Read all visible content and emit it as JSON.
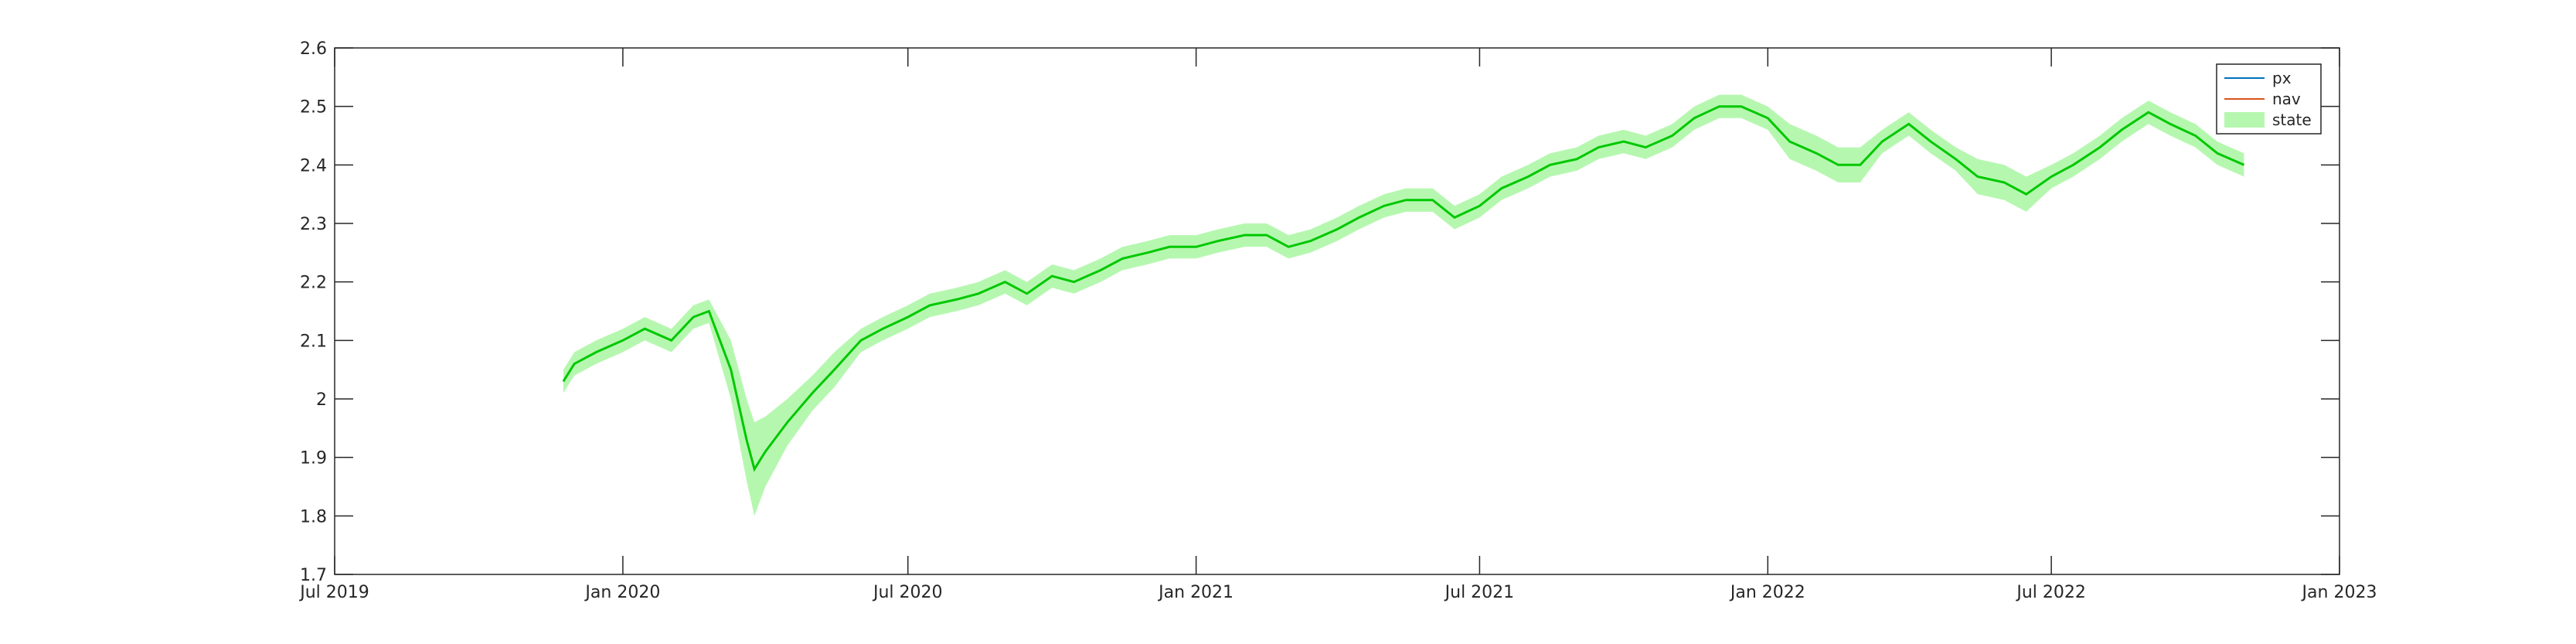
{
  "chart_data": {
    "type": "line",
    "title": "",
    "xlabel": "",
    "ylabel": "",
    "x_range": [
      "2019-07-01",
      "2023-01-01"
    ],
    "ylim": [
      1.7,
      2.6
    ],
    "x_tick_labels": [
      "Jul 2019",
      "Jan 2020",
      "Jul 2020",
      "Jan 2021",
      "Jul 2021",
      "Jan 2022",
      "Jul 2022",
      "Jan 2023"
    ],
    "x_tick_dates": [
      "2019-07-01",
      "2020-01-01",
      "2020-07-01",
      "2021-01-01",
      "2021-07-01",
      "2022-01-01",
      "2022-07-01",
      "2023-01-01"
    ],
    "y_ticks": [
      1.7,
      1.8,
      1.9,
      2.0,
      2.1,
      2.2,
      2.3,
      2.4,
      2.5,
      2.6
    ],
    "y_tick_labels": [
      "1.7",
      "1.8",
      "1.9",
      "2",
      "2.1",
      "2.2",
      "2.3",
      "2.4",
      "2.5",
      "2.6"
    ],
    "grid": false,
    "legend_placement": "top-right",
    "x": [
      "2019-11-24",
      "2019-12-01",
      "2019-12-15",
      "2020-01-01",
      "2020-01-15",
      "2020-02-01",
      "2020-02-15",
      "2020-02-25",
      "2020-03-10",
      "2020-03-20",
      "2020-03-25",
      "2020-04-01",
      "2020-04-15",
      "2020-05-01",
      "2020-05-15",
      "2020-06-01",
      "2020-06-15",
      "2020-07-01",
      "2020-07-15",
      "2020-08-01",
      "2020-08-15",
      "2020-09-01",
      "2020-09-15",
      "2020-10-01",
      "2020-10-15",
      "2020-11-01",
      "2020-11-15",
      "2020-12-01",
      "2020-12-15",
      "2021-01-01",
      "2021-01-15",
      "2021-02-01",
      "2021-02-15",
      "2021-03-01",
      "2021-03-15",
      "2021-04-01",
      "2021-04-15",
      "2021-05-01",
      "2021-05-15",
      "2021-06-01",
      "2021-06-15",
      "2021-07-01",
      "2021-07-15",
      "2021-08-01",
      "2021-08-15",
      "2021-09-01",
      "2021-09-15",
      "2021-10-01",
      "2021-10-15",
      "2021-11-01",
      "2021-11-15",
      "2021-12-01",
      "2021-12-15",
      "2022-01-01",
      "2022-01-15",
      "2022-02-01",
      "2022-02-15",
      "2022-03-01",
      "2022-03-15",
      "2022-04-01",
      "2022-04-15",
      "2022-05-01",
      "2022-05-15",
      "2022-06-01",
      "2022-06-15",
      "2022-07-01",
      "2022-07-15",
      "2022-08-01",
      "2022-08-15",
      "2022-09-01",
      "2022-09-15",
      "2022-10-01",
      "2022-10-15",
      "2022-11-01"
    ],
    "series": [
      {
        "name": "px",
        "color": "#0072bd",
        "values": [
          2.03,
          2.06,
          2.08,
          2.1,
          2.12,
          2.1,
          2.14,
          2.15,
          2.05,
          1.93,
          1.88,
          1.91,
          1.96,
          2.01,
          2.05,
          2.1,
          2.12,
          2.14,
          2.16,
          2.17,
          2.18,
          2.2,
          2.18,
          2.21,
          2.2,
          2.22,
          2.24,
          2.25,
          2.26,
          2.26,
          2.27,
          2.28,
          2.28,
          2.26,
          2.27,
          2.29,
          2.31,
          2.33,
          2.34,
          2.34,
          2.31,
          2.33,
          2.36,
          2.38,
          2.4,
          2.41,
          2.43,
          2.44,
          2.43,
          2.45,
          2.48,
          2.5,
          2.5,
          2.48,
          2.44,
          2.42,
          2.4,
          2.4,
          2.44,
          2.47,
          2.44,
          2.41,
          2.38,
          2.37,
          2.35,
          2.38,
          2.4,
          2.43,
          2.46,
          2.49,
          2.47,
          2.45,
          2.42,
          2.4
        ]
      },
      {
        "name": "nav",
        "color": "#d95319",
        "values": [
          2.03,
          2.06,
          2.08,
          2.1,
          2.12,
          2.1,
          2.14,
          2.15,
          2.05,
          1.93,
          1.88,
          1.91,
          1.96,
          2.01,
          2.05,
          2.1,
          2.12,
          2.14,
          2.16,
          2.17,
          2.18,
          2.2,
          2.18,
          2.21,
          2.2,
          2.22,
          2.24,
          2.25,
          2.26,
          2.26,
          2.27,
          2.28,
          2.28,
          2.26,
          2.27,
          2.29,
          2.31,
          2.33,
          2.34,
          2.34,
          2.31,
          2.33,
          2.36,
          2.38,
          2.4,
          2.41,
          2.43,
          2.44,
          2.43,
          2.45,
          2.48,
          2.5,
          2.5,
          2.48,
          2.44,
          2.42,
          2.4,
          2.4,
          2.44,
          2.47,
          2.44,
          2.41,
          2.38,
          2.37,
          2.35,
          2.38,
          2.4,
          2.43,
          2.46,
          2.49,
          2.47,
          2.45,
          2.42,
          2.4
        ]
      },
      {
        "name": "state",
        "color": "#00c800",
        "band_color": "#b6f7b0",
        "values": [
          2.03,
          2.06,
          2.08,
          2.1,
          2.12,
          2.1,
          2.14,
          2.15,
          2.05,
          1.93,
          1.88,
          1.91,
          1.96,
          2.01,
          2.05,
          2.1,
          2.12,
          2.14,
          2.16,
          2.17,
          2.18,
          2.2,
          2.18,
          2.21,
          2.2,
          2.22,
          2.24,
          2.25,
          2.26,
          2.26,
          2.27,
          2.28,
          2.28,
          2.26,
          2.27,
          2.29,
          2.31,
          2.33,
          2.34,
          2.34,
          2.31,
          2.33,
          2.36,
          2.38,
          2.4,
          2.41,
          2.43,
          2.44,
          2.43,
          2.45,
          2.48,
          2.5,
          2.5,
          2.48,
          2.44,
          2.42,
          2.4,
          2.4,
          2.44,
          2.47,
          2.44,
          2.41,
          2.38,
          2.37,
          2.35,
          2.38,
          2.4,
          2.43,
          2.46,
          2.49,
          2.47,
          2.45,
          2.42,
          2.4
        ],
        "band_halfwidth": [
          0.02,
          0.02,
          0.02,
          0.02,
          0.02,
          0.02,
          0.02,
          0.02,
          0.05,
          0.07,
          0.08,
          0.06,
          0.04,
          0.03,
          0.03,
          0.02,
          0.02,
          0.02,
          0.02,
          0.02,
          0.02,
          0.02,
          0.02,
          0.02,
          0.02,
          0.02,
          0.02,
          0.02,
          0.02,
          0.02,
          0.02,
          0.02,
          0.02,
          0.02,
          0.02,
          0.02,
          0.02,
          0.02,
          0.02,
          0.02,
          0.02,
          0.02,
          0.02,
          0.02,
          0.02,
          0.02,
          0.02,
          0.02,
          0.02,
          0.02,
          0.02,
          0.02,
          0.02,
          0.02,
          0.03,
          0.03,
          0.03,
          0.03,
          0.02,
          0.02,
          0.02,
          0.02,
          0.03,
          0.03,
          0.03,
          0.02,
          0.02,
          0.02,
          0.02,
          0.02,
          0.02,
          0.02,
          0.02,
          0.02
        ]
      }
    ],
    "legend": [
      "px",
      "nav",
      "state"
    ]
  }
}
